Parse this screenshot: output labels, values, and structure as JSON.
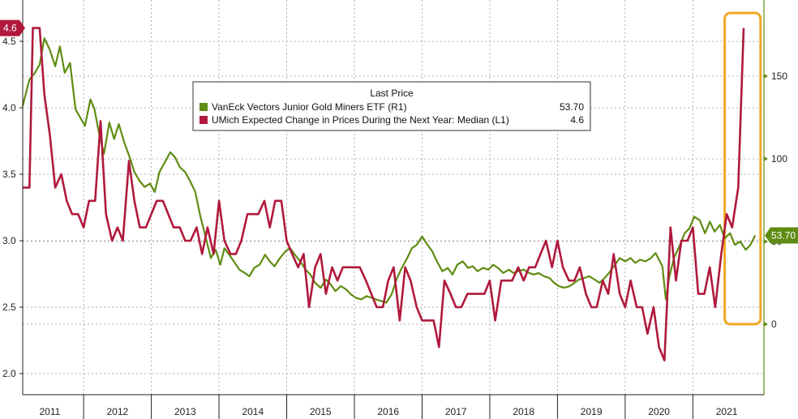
{
  "chart_data": {
    "type": "line",
    "title": "",
    "legend": {
      "header": "Last Price",
      "placement": "top-center",
      "entries": [
        {
          "label": "VanEck Vectors Junior Gold Miners ETF  (R1)",
          "value": "53.70",
          "color": "#5f8c12"
        },
        {
          "label": "UMich Expected Change in Prices During the Next Year: Median  (L1)",
          "value": "4.6",
          "color": "#b0193c"
        }
      ]
    },
    "x_range": [
      2010.6,
      2021.55
    ],
    "x_ticks": [
      {
        "label": "2011",
        "x": 2011.0
      },
      {
        "label": "2012",
        "x": 2012.0
      },
      {
        "label": "2013",
        "x": 2013.0
      },
      {
        "label": "2014",
        "x": 2014.0
      },
      {
        "label": "2015",
        "x": 2015.0
      },
      {
        "label": "2016",
        "x": 2016.0
      },
      {
        "label": "2017",
        "x": 2017.0
      },
      {
        "label": "2018",
        "x": 2018.0
      },
      {
        "label": "2019",
        "x": 2019.0
      },
      {
        "label": "2020",
        "x": 2020.0
      },
      {
        "label": "2021",
        "x": 2021.0
      }
    ],
    "left_axis": {
      "ylim": [
        1.9,
        4.8
      ],
      "ticks": [
        {
          "label": "2.0",
          "v": 2.0
        },
        {
          "label": "2.5",
          "v": 2.5
        },
        {
          "label": "3.0",
          "v": 3.0
        },
        {
          "label": "3.5",
          "v": 3.5
        },
        {
          "label": "4.0",
          "v": 4.0
        },
        {
          "label": "4.5",
          "v": 4.5
        }
      ]
    },
    "right_axis": {
      "ylim": [
        -30,
        195
      ],
      "ticks": [
        {
          "label": "0",
          "v": 0
        },
        {
          "label": "50",
          "v": 50
        },
        {
          "label": "100",
          "v": 100
        },
        {
          "label": "150",
          "v": 150
        }
      ]
    },
    "grid": true,
    "last_value_tags": [
      {
        "label": "4.6",
        "axis": "left",
        "value": 4.6,
        "color": "#b0193c"
      },
      {
        "label": "53.70",
        "axis": "right",
        "value": 53.7,
        "color": "#5f8c12"
      }
    ],
    "highlight_box": {
      "color": "#f0a823",
      "x_from": 2020.97,
      "x_to": 2021.5
    },
    "series": [
      {
        "name": "VanEck Vectors Junior Gold Miners ETF  (R1)",
        "axis": "right",
        "color": "#5f8c12",
        "points": [
          [
            2010.6,
            132
          ],
          [
            2010.7,
            148
          ],
          [
            2010.78,
            152
          ],
          [
            2010.85,
            157
          ],
          [
            2010.92,
            173
          ],
          [
            2011.0,
            166
          ],
          [
            2011.08,
            156
          ],
          [
            2011.15,
            168
          ],
          [
            2011.22,
            152
          ],
          [
            2011.3,
            158
          ],
          [
            2011.38,
            130
          ],
          [
            2011.45,
            125
          ],
          [
            2011.52,
            120
          ],
          [
            2011.6,
            136
          ],
          [
            2011.66,
            130
          ],
          [
            2011.72,
            117
          ],
          [
            2011.8,
            103
          ],
          [
            2011.88,
            122
          ],
          [
            2011.95,
            112
          ],
          [
            2012.02,
            121
          ],
          [
            2012.1,
            110
          ],
          [
            2012.18,
            101
          ],
          [
            2012.25,
            92
          ],
          [
            2012.32,
            87
          ],
          [
            2012.4,
            83
          ],
          [
            2012.48,
            85
          ],
          [
            2012.55,
            80
          ],
          [
            2012.62,
            92
          ],
          [
            2012.7,
            98
          ],
          [
            2012.78,
            104
          ],
          [
            2012.85,
            101
          ],
          [
            2012.92,
            95
          ],
          [
            2013.0,
            92
          ],
          [
            2013.08,
            86
          ],
          [
            2013.15,
            80
          ],
          [
            2013.22,
            66
          ],
          [
            2013.3,
            53
          ],
          [
            2013.38,
            40
          ],
          [
            2013.45,
            45
          ],
          [
            2013.52,
            36
          ],
          [
            2013.58,
            46
          ],
          [
            2013.65,
            42
          ],
          [
            2013.72,
            38
          ],
          [
            2013.8,
            33
          ],
          [
            2013.88,
            31
          ],
          [
            2013.95,
            29
          ],
          [
            2014.02,
            34
          ],
          [
            2014.1,
            36
          ],
          [
            2014.18,
            42
          ],
          [
            2014.25,
            38
          ],
          [
            2014.32,
            35
          ],
          [
            2014.4,
            40
          ],
          [
            2014.48,
            44
          ],
          [
            2014.55,
            46
          ],
          [
            2014.62,
            42
          ],
          [
            2014.7,
            38
          ],
          [
            2014.78,
            33
          ],
          [
            2014.85,
            30
          ],
          [
            2014.92,
            25
          ],
          [
            2015.0,
            22
          ],
          [
            2015.08,
            27
          ],
          [
            2015.15,
            24
          ],
          [
            2015.22,
            20
          ],
          [
            2015.3,
            23
          ],
          [
            2015.38,
            21
          ],
          [
            2015.45,
            18
          ],
          [
            2015.52,
            16
          ],
          [
            2015.6,
            15
          ],
          [
            2015.68,
            17
          ],
          [
            2015.75,
            16
          ],
          [
            2015.82,
            15
          ],
          [
            2015.9,
            14
          ],
          [
            2015.97,
            13
          ],
          [
            2016.05,
            18
          ],
          [
            2016.12,
            27
          ],
          [
            2016.2,
            34
          ],
          [
            2016.28,
            40
          ],
          [
            2016.35,
            46
          ],
          [
            2016.42,
            48
          ],
          [
            2016.5,
            53
          ],
          [
            2016.58,
            48
          ],
          [
            2016.65,
            44
          ],
          [
            2016.72,
            38
          ],
          [
            2016.8,
            32
          ],
          [
            2016.88,
            34
          ],
          [
            2016.95,
            30
          ],
          [
            2017.02,
            36
          ],
          [
            2017.1,
            38
          ],
          [
            2017.18,
            34
          ],
          [
            2017.25,
            35
          ],
          [
            2017.32,
            32
          ],
          [
            2017.4,
            34
          ],
          [
            2017.48,
            33
          ],
          [
            2017.55,
            36
          ],
          [
            2017.62,
            34
          ],
          [
            2017.7,
            31
          ],
          [
            2017.78,
            33
          ],
          [
            2017.85,
            31
          ],
          [
            2017.92,
            32
          ],
          [
            2018.0,
            33
          ],
          [
            2018.08,
            31
          ],
          [
            2018.15,
            30
          ],
          [
            2018.22,
            31
          ],
          [
            2018.3,
            29
          ],
          [
            2018.38,
            28
          ],
          [
            2018.45,
            25
          ],
          [
            2018.52,
            23
          ],
          [
            2018.6,
            22
          ],
          [
            2018.68,
            23
          ],
          [
            2018.75,
            25
          ],
          [
            2018.82,
            27
          ],
          [
            2018.9,
            28
          ],
          [
            2018.97,
            29
          ],
          [
            2019.05,
            27
          ],
          [
            2019.12,
            25
          ],
          [
            2019.2,
            28
          ],
          [
            2019.28,
            32
          ],
          [
            2019.35,
            36
          ],
          [
            2019.42,
            40
          ],
          [
            2019.5,
            38
          ],
          [
            2019.58,
            40
          ],
          [
            2019.65,
            37
          ],
          [
            2019.72,
            39
          ],
          [
            2019.8,
            38
          ],
          [
            2019.88,
            40
          ],
          [
            2019.95,
            43
          ],
          [
            2020.05,
            35
          ],
          [
            2020.1,
            15
          ],
          [
            2020.15,
            28
          ],
          [
            2020.22,
            40
          ],
          [
            2020.3,
            47
          ],
          [
            2020.38,
            55
          ],
          [
            2020.45,
            58
          ],
          [
            2020.52,
            65
          ],
          [
            2020.6,
            63
          ],
          [
            2020.68,
            55
          ],
          [
            2020.75,
            62
          ],
          [
            2020.82,
            56
          ],
          [
            2020.9,
            60
          ],
          [
            2020.97,
            52
          ],
          [
            2021.05,
            55
          ],
          [
            2021.12,
            48
          ],
          [
            2021.2,
            50
          ],
          [
            2021.28,
            45
          ],
          [
            2021.35,
            48
          ],
          [
            2021.42,
            53.7
          ]
        ]
      },
      {
        "name": "UMich Expected Change in Prices During the Next Year: Median  (L1)",
        "axis": "left",
        "color": "#b0193c",
        "points": [
          [
            2010.6,
            3.4
          ],
          [
            2010.7,
            3.4
          ],
          [
            2010.75,
            4.6
          ],
          [
            2010.85,
            4.6
          ],
          [
            2010.92,
            4.1
          ],
          [
            2011.0,
            3.8
          ],
          [
            2011.08,
            3.4
          ],
          [
            2011.17,
            3.5
          ],
          [
            2011.25,
            3.3
          ],
          [
            2011.33,
            3.2
          ],
          [
            2011.42,
            3.2
          ],
          [
            2011.5,
            3.1
          ],
          [
            2011.58,
            3.3
          ],
          [
            2011.67,
            3.3
          ],
          [
            2011.75,
            3.9
          ],
          [
            2011.83,
            3.2
          ],
          [
            2011.92,
            3.0
          ],
          [
            2012.0,
            3.1
          ],
          [
            2012.08,
            3.0
          ],
          [
            2012.17,
            3.6
          ],
          [
            2012.25,
            3.3
          ],
          [
            2012.33,
            3.1
          ],
          [
            2012.42,
            3.1
          ],
          [
            2012.5,
            3.2
          ],
          [
            2012.58,
            3.3
          ],
          [
            2012.67,
            3.3
          ],
          [
            2012.75,
            3.2
          ],
          [
            2012.83,
            3.1
          ],
          [
            2012.92,
            3.1
          ],
          [
            2013.0,
            3.0
          ],
          [
            2013.08,
            3.0
          ],
          [
            2013.17,
            3.1
          ],
          [
            2013.25,
            2.9
          ],
          [
            2013.33,
            3.1
          ],
          [
            2013.42,
            2.9
          ],
          [
            2013.5,
            3.3
          ],
          [
            2013.58,
            3.0
          ],
          [
            2013.67,
            2.9
          ],
          [
            2013.75,
            2.9
          ],
          [
            2013.83,
            3.0
          ],
          [
            2013.92,
            3.2
          ],
          [
            2014.0,
            3.2
          ],
          [
            2014.08,
            3.2
          ],
          [
            2014.17,
            3.3
          ],
          [
            2014.25,
            3.1
          ],
          [
            2014.33,
            3.3
          ],
          [
            2014.42,
            3.3
          ],
          [
            2014.5,
            3.0
          ],
          [
            2014.58,
            2.9
          ],
          [
            2014.67,
            2.8
          ],
          [
            2014.75,
            2.9
          ],
          [
            2014.83,
            2.5
          ],
          [
            2014.92,
            2.8
          ],
          [
            2015.0,
            2.9
          ],
          [
            2015.08,
            2.6
          ],
          [
            2015.17,
            2.8
          ],
          [
            2015.25,
            2.7
          ],
          [
            2015.33,
            2.8
          ],
          [
            2015.42,
            2.8
          ],
          [
            2015.5,
            2.8
          ],
          [
            2015.58,
            2.8
          ],
          [
            2015.67,
            2.7
          ],
          [
            2015.75,
            2.6
          ],
          [
            2015.83,
            2.5
          ],
          [
            2015.92,
            2.5
          ],
          [
            2016.0,
            2.7
          ],
          [
            2016.08,
            2.8
          ],
          [
            2016.17,
            2.4
          ],
          [
            2016.25,
            2.8
          ],
          [
            2016.33,
            2.7
          ],
          [
            2016.42,
            2.5
          ],
          [
            2016.5,
            2.4
          ],
          [
            2016.58,
            2.4
          ],
          [
            2016.67,
            2.4
          ],
          [
            2016.75,
            2.2
          ],
          [
            2016.83,
            2.7
          ],
          [
            2016.92,
            2.6
          ],
          [
            2017.0,
            2.5
          ],
          [
            2017.08,
            2.5
          ],
          [
            2017.17,
            2.6
          ],
          [
            2017.25,
            2.6
          ],
          [
            2017.33,
            2.6
          ],
          [
            2017.42,
            2.6
          ],
          [
            2017.5,
            2.7
          ],
          [
            2017.58,
            2.4
          ],
          [
            2017.67,
            2.7
          ],
          [
            2017.75,
            2.7
          ],
          [
            2017.83,
            2.7
          ],
          [
            2017.92,
            2.8
          ],
          [
            2018.0,
            2.7
          ],
          [
            2018.08,
            2.8
          ],
          [
            2018.17,
            2.8
          ],
          [
            2018.25,
            2.9
          ],
          [
            2018.33,
            3.0
          ],
          [
            2018.42,
            2.8
          ],
          [
            2018.5,
            3.0
          ],
          [
            2018.58,
            2.8
          ],
          [
            2018.67,
            2.7
          ],
          [
            2018.75,
            2.7
          ],
          [
            2018.83,
            2.8
          ],
          [
            2018.92,
            2.6
          ],
          [
            2019.0,
            2.5
          ],
          [
            2019.08,
            2.5
          ],
          [
            2019.17,
            2.7
          ],
          [
            2019.25,
            2.6
          ],
          [
            2019.33,
            2.9
          ],
          [
            2019.42,
            2.6
          ],
          [
            2019.5,
            2.5
          ],
          [
            2019.58,
            2.7
          ],
          [
            2019.67,
            2.5
          ],
          [
            2019.75,
            2.5
          ],
          [
            2019.83,
            2.3
          ],
          [
            2019.92,
            2.5
          ],
          [
            2020.0,
            2.2
          ],
          [
            2020.08,
            2.1
          ],
          [
            2020.17,
            3.1
          ],
          [
            2020.25,
            2.7
          ],
          [
            2020.33,
            3.0
          ],
          [
            2020.42,
            3.0
          ],
          [
            2020.5,
            3.1
          ],
          [
            2020.58,
            2.6
          ],
          [
            2020.67,
            2.6
          ],
          [
            2020.75,
            2.8
          ],
          [
            2020.83,
            2.5
          ],
          [
            2020.92,
            2.9
          ],
          [
            2021.0,
            3.2
          ],
          [
            2021.08,
            3.1
          ],
          [
            2021.17,
            3.4
          ],
          [
            2021.25,
            4.6
          ]
        ]
      }
    ]
  }
}
